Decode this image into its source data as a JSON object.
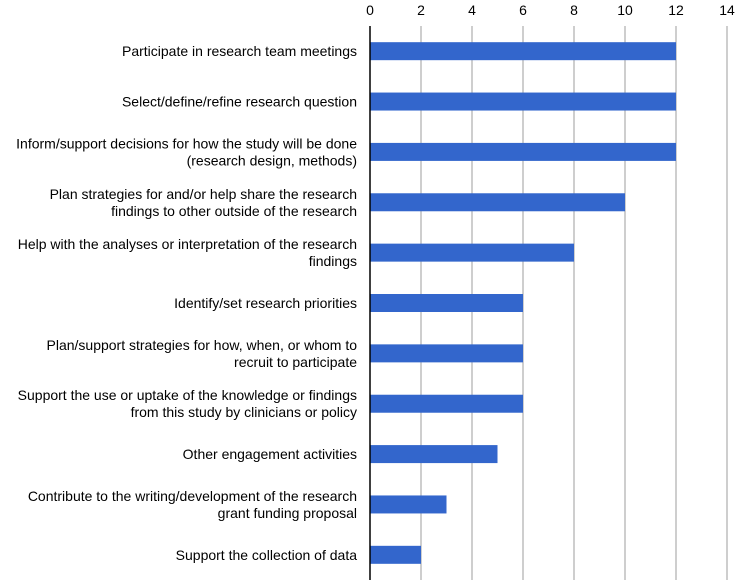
{
  "chart_data": {
    "type": "bar",
    "orientation": "horizontal",
    "title": "",
    "xlabel": "",
    "ylabel": "",
    "xlim": [
      0,
      14
    ],
    "x_ticks": [
      "0",
      "2",
      "4",
      "6",
      "8",
      "10",
      "12",
      "14"
    ],
    "x_axis_position": "top",
    "grid": true,
    "legend": "none",
    "bar_color": "#3366cc",
    "categories": [
      [
        "Participate in research team meetings"
      ],
      [
        "Select/define/refine research question"
      ],
      [
        "Inform/support decisions for how the study will be done",
        "(research design, methods)"
      ],
      [
        "Plan strategies for and/or help share the research",
        "findings to other outside of the research"
      ],
      [
        "Help with the analyses or interpretation of the research",
        "findings"
      ],
      [
        "Identify/set research priorities"
      ],
      [
        "Plan/support strategies for how, when, or whom to",
        "recruit to participate"
      ],
      [
        "Support the use or uptake of the knowledge or findings",
        "from this study by clinicians or policy"
      ],
      [
        "Other engagement activities"
      ],
      [
        "Contribute to the writing/development of the research",
        "grant funding proposal"
      ],
      [
        "Support the collection of data"
      ]
    ],
    "values": [
      12,
      12,
      12,
      10,
      8,
      6,
      6,
      6,
      5,
      3,
      2
    ]
  }
}
